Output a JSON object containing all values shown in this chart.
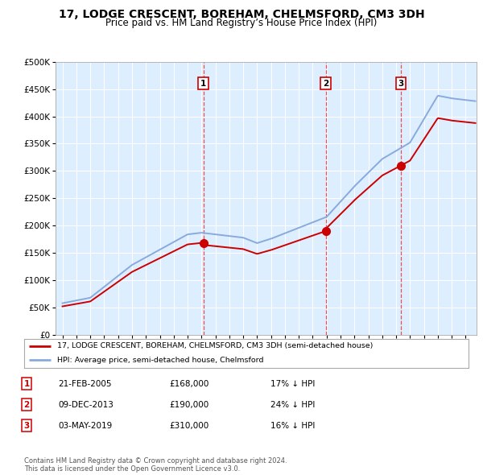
{
  "title": "17, LODGE CRESCENT, BOREHAM, CHELMSFORD, CM3 3DH",
  "subtitle": "Price paid vs. HM Land Registry’s House Price Index (HPI)",
  "title_fontsize": 10,
  "subtitle_fontsize": 8.5,
  "background_color": "#ffffff",
  "plot_bg_color": "#ddeeff",
  "grid_color": "#ffffff",
  "sale_color": "#cc0000",
  "hpi_color": "#88aadd",
  "sale_dates": [
    2005.13,
    2013.93,
    2019.34
  ],
  "sale_prices": [
    168000,
    190000,
    310000
  ],
  "sale_labels": [
    "1",
    "2",
    "3"
  ],
  "legend_sale_label": "17, LODGE CRESCENT, BOREHAM, CHELMSFORD, CM3 3DH (semi-detached house)",
  "legend_hpi_label": "HPI: Average price, semi-detached house, Chelmsford",
  "table_rows": [
    {
      "num": "1",
      "date": "21-FEB-2005",
      "price": "£168,000",
      "pct": "17% ↓ HPI"
    },
    {
      "num": "2",
      "date": "09-DEC-2013",
      "price": "£190,000",
      "pct": "24% ↓ HPI"
    },
    {
      "num": "3",
      "date": "03-MAY-2019",
      "price": "£310,000",
      "pct": "16% ↓ HPI"
    }
  ],
  "footnote": "Contains HM Land Registry data © Crown copyright and database right 2024.\nThis data is licensed under the Open Government Licence v3.0.",
  "ylim": [
    0,
    500000
  ],
  "yticks": [
    0,
    50000,
    100000,
    150000,
    200000,
    250000,
    300000,
    350000,
    400000,
    450000,
    500000
  ],
  "xlim": [
    1994.5,
    2024.8
  ],
  "xticks": [
    1995,
    1996,
    1997,
    1998,
    1999,
    2000,
    2001,
    2002,
    2003,
    2004,
    2005,
    2006,
    2007,
    2008,
    2009,
    2010,
    2011,
    2012,
    2013,
    2014,
    2015,
    2016,
    2017,
    2018,
    2019,
    2020,
    2021,
    2022,
    2023,
    2024
  ]
}
